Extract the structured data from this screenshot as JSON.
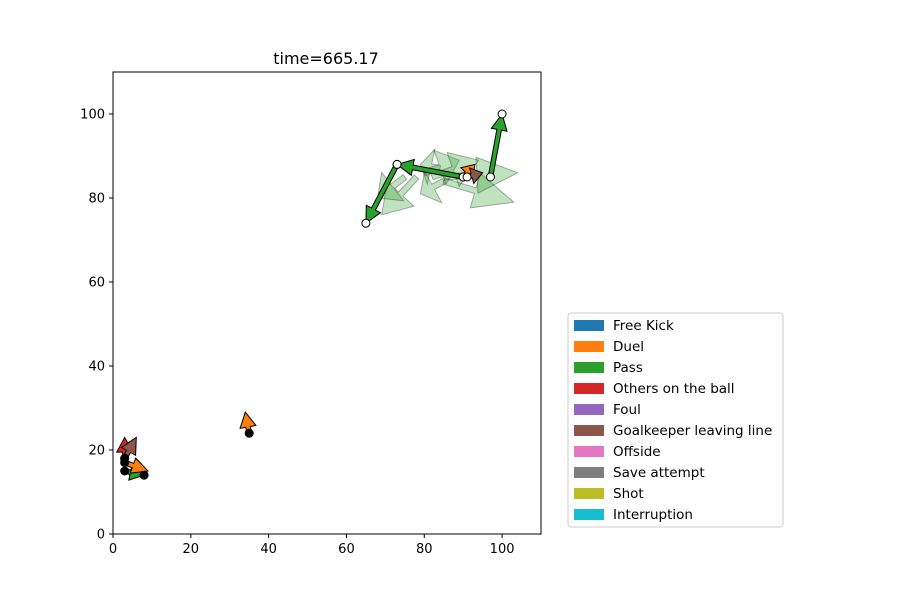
{
  "chart_data": {
    "type": "scatter",
    "title": "time=665.17",
    "xlabel": "",
    "ylabel": "",
    "xlim": [
      0,
      110
    ],
    "ylim": [
      0,
      110
    ],
    "xticks": [
      0,
      20,
      40,
      60,
      80,
      100
    ],
    "yticks": [
      0,
      20,
      40,
      60,
      80,
      100
    ],
    "grid": false,
    "legend_position": "lower-right outside",
    "legend": [
      {
        "label": "Free Kick",
        "color": "#1f77b4"
      },
      {
        "label": "Duel",
        "color": "#ff7f0e"
      },
      {
        "label": "Pass",
        "color": "#2ca02c"
      },
      {
        "label": "Others on the ball",
        "color": "#d62728"
      },
      {
        "label": "Foul",
        "color": "#9467bd"
      },
      {
        "label": "Goalkeeper leaving line",
        "color": "#8c564b"
      },
      {
        "label": "Offside",
        "color": "#e377c2"
      },
      {
        "label": "Save attempt",
        "color": "#7f7f7f"
      },
      {
        "label": "Shot",
        "color": "#bcbd22"
      },
      {
        "label": "Interruption",
        "color": "#17becf"
      }
    ],
    "events": [
      {
        "type": "Pass",
        "x": [
          97,
          100
        ],
        "y": [
          85,
          100
        ],
        "alpha": 1,
        "team": "white"
      },
      {
        "type": "Pass",
        "x": [
          90,
          73
        ],
        "y": [
          85,
          88
        ],
        "alpha": 1,
        "team": "white"
      },
      {
        "type": "Pass",
        "x": [
          73,
          65
        ],
        "y": [
          88,
          74
        ],
        "alpha": 1,
        "team": "white"
      },
      {
        "type": "Duel",
        "x": [
          90,
          93
        ],
        "y": [
          85,
          88
        ],
        "alpha": 1,
        "team": "white"
      },
      {
        "type": "Goalkeeper leaving line",
        "x": [
          91,
          95
        ],
        "y": [
          85,
          86
        ],
        "alpha": 1,
        "team": "white"
      },
      {
        "type": "Pass",
        "x": [
          3,
          8
        ],
        "y": [
          15,
          14
        ],
        "alpha": 1,
        "team": "black"
      },
      {
        "type": "Others on the ball",
        "x": [
          3,
          3
        ],
        "y": [
          18,
          23
        ],
        "alpha": 1,
        "team": "black"
      },
      {
        "type": "Goalkeeper leaving line",
        "x": [
          3,
          6
        ],
        "y": [
          18,
          23
        ],
        "alpha": 1,
        "team": "black"
      },
      {
        "type": "Duel",
        "x": [
          3,
          9
        ],
        "y": [
          17,
          15
        ],
        "alpha": 1,
        "team": "black"
      },
      {
        "type": "Duel",
        "x": [
          35,
          34
        ],
        "y": [
          24,
          29
        ],
        "alpha": 1,
        "team": "black"
      },
      {
        "type": "Pass",
        "x": [
          85,
          103
        ],
        "y": [
          84,
          79
        ],
        "alpha": 0.3,
        "team": "none"
      },
      {
        "type": "Pass",
        "x": [
          85,
          104
        ],
        "y": [
          85,
          86
        ],
        "alpha": 0.3,
        "team": "none"
      },
      {
        "type": "Pass",
        "x": [
          84,
          79
        ],
        "y": [
          87,
          88
        ],
        "alpha": 0.3,
        "team": "none"
      },
      {
        "type": "Pass",
        "x": [
          80,
          89
        ],
        "y": [
          86,
          89
        ],
        "alpha": 0.3,
        "team": "none"
      },
      {
        "type": "Pass",
        "x": [
          82,
          94
        ],
        "y": [
          85,
          89
        ],
        "alpha": 0.3,
        "team": "none"
      },
      {
        "type": "Pass",
        "x": [
          85,
          79
        ],
        "y": [
          84,
          81
        ],
        "alpha": 0.3,
        "team": "none"
      },
      {
        "type": "Pass",
        "x": [
          78,
          69
        ],
        "y": [
          85,
          76
        ],
        "alpha": 0.3,
        "team": "none"
      },
      {
        "type": "Pass",
        "x": [
          75,
          68
        ],
        "y": [
          85,
          80
        ],
        "alpha": 0.3,
        "team": "none"
      }
    ]
  }
}
